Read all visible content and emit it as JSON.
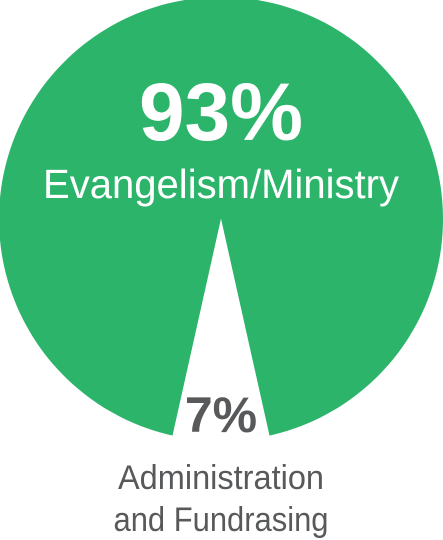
{
  "chart_data": {
    "type": "pie",
    "slices": [
      {
        "label": "Evangelism/Ministry",
        "percent_label": "93%",
        "value": 93,
        "color": "#2db46b"
      },
      {
        "label_lines": [
          "Administration",
          "and Fundrasing"
        ],
        "percent_label": "7%",
        "value": 7,
        "color": "#ffffff"
      }
    ],
    "colors": {
      "major_text": "#ffffff",
      "minor_text": "#58595b"
    }
  }
}
